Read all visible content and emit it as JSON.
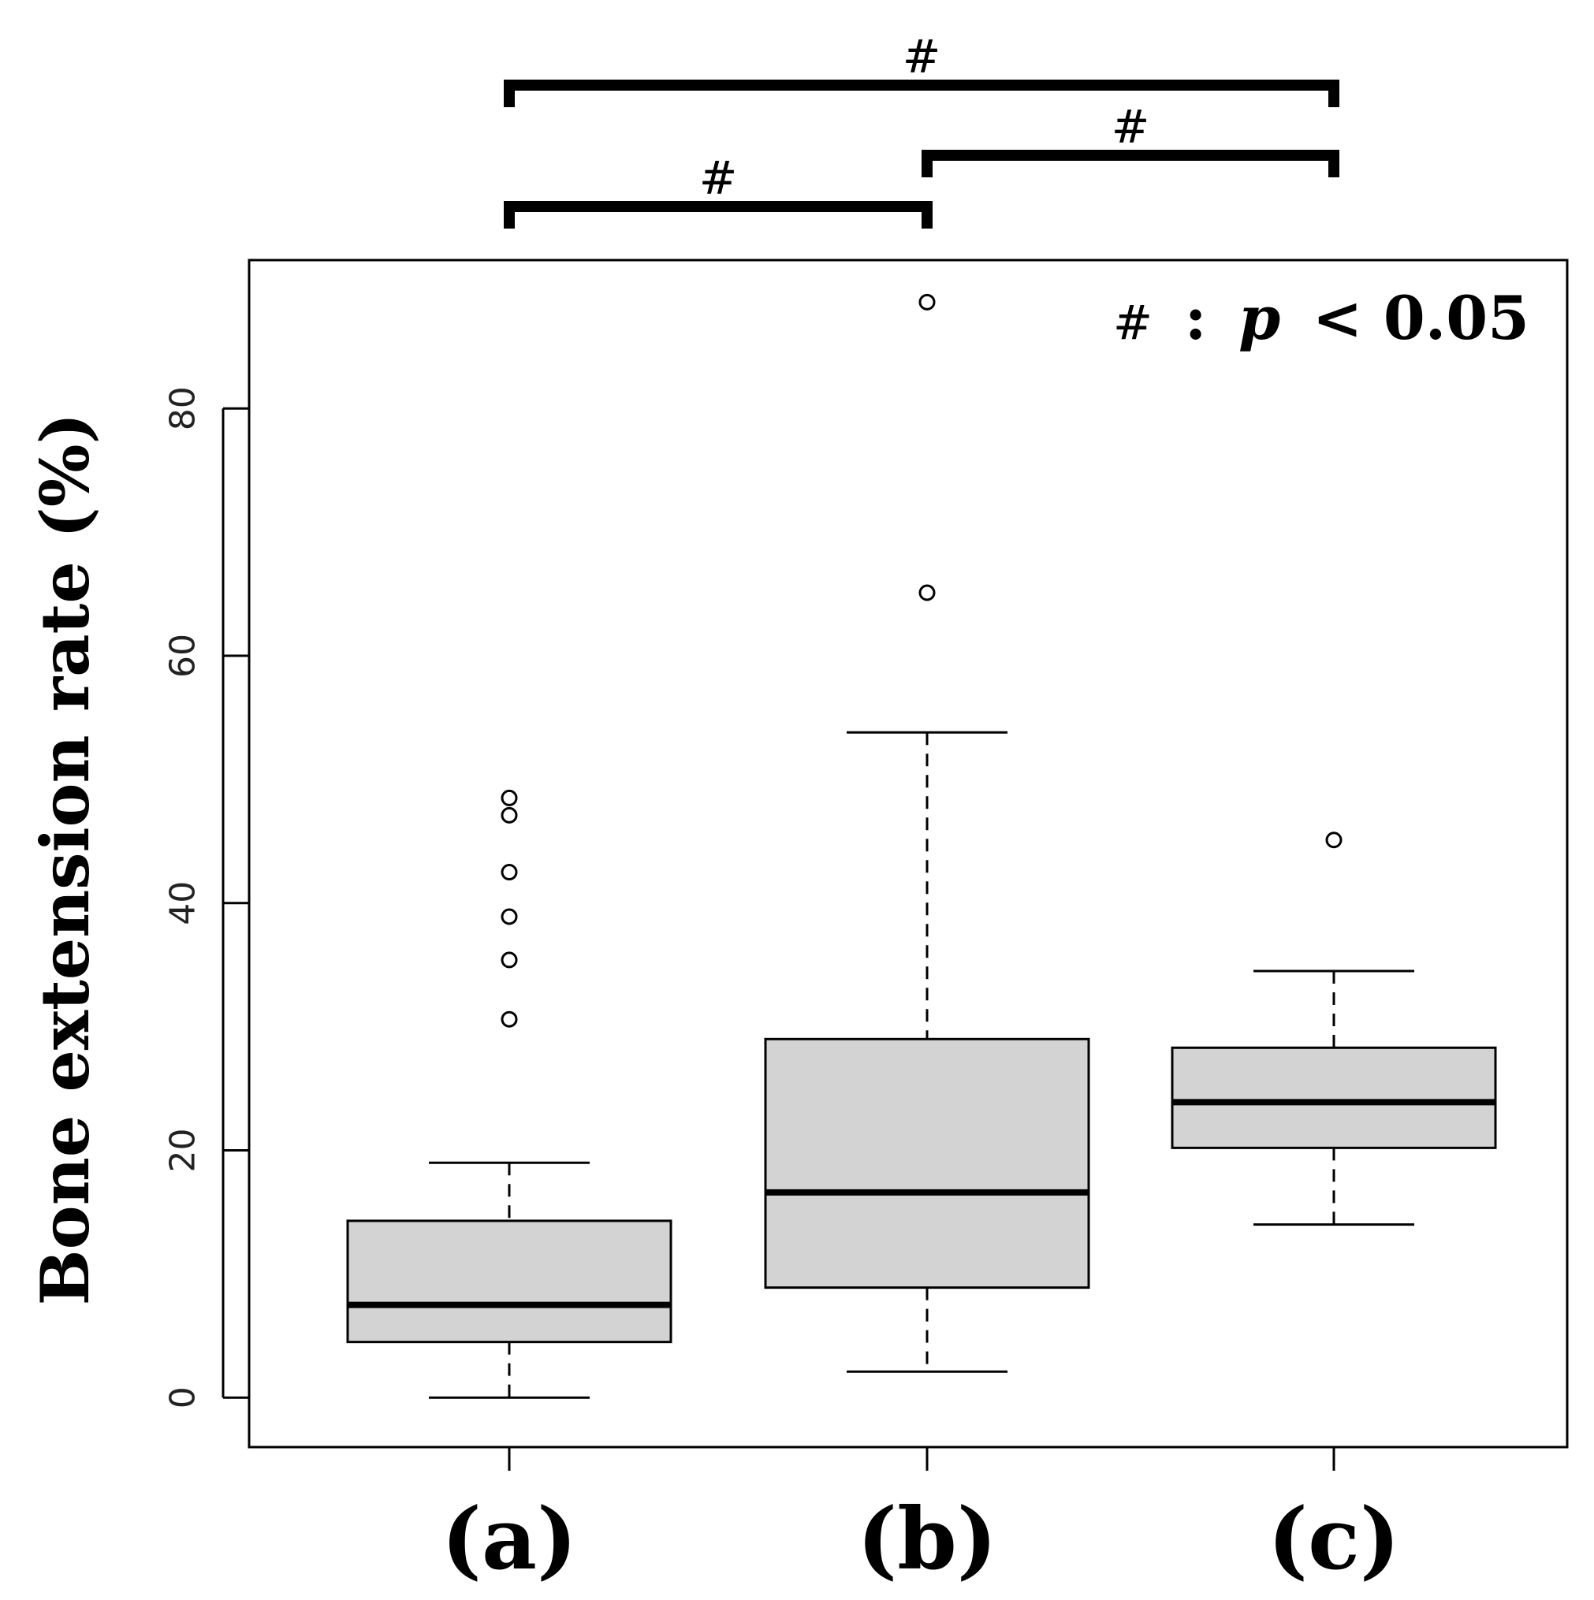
{
  "chart_data": {
    "type": "box",
    "ylabel": "Bone extension rate (%)",
    "xlabel": "",
    "title": "",
    "ylim": [
      -4,
      92
    ],
    "yticks": [
      0,
      20,
      40,
      60,
      80
    ],
    "categories": [
      "(a)",
      "(b)",
      "(c)"
    ],
    "boxes": [
      {
        "label": "(a)",
        "whisker_low": 0,
        "q1": 4.5,
        "median": 7.5,
        "q3": 14.3,
        "whisker_high": 19,
        "outliers": [
          30.6,
          35.4,
          38.9,
          42.5,
          47.1,
          48.5
        ]
      },
      {
        "label": "(b)",
        "whisker_low": 2.1,
        "q1": 8.9,
        "median": 16.6,
        "q3": 29,
        "whisker_high": 53.8,
        "outliers": [
          65.1,
          88.6
        ]
      },
      {
        "label": "(c)",
        "whisker_low": 14,
        "q1": 20.2,
        "median": 23.9,
        "q3": 28.3,
        "whisker_high": 34.5,
        "outliers": [
          45.1
        ]
      }
    ],
    "significance": [
      {
        "from": 0,
        "to": 2,
        "label": "#"
      },
      {
        "from": 1,
        "to": 2,
        "label": "#"
      },
      {
        "from": 0,
        "to": 1,
        "label": "#"
      }
    ],
    "legend": {
      "symbol": "#",
      "separator": ":",
      "p": "p",
      "relation": "< 0.05"
    },
    "colors": {
      "box_fill": "#d3d3d3",
      "stroke": "#000000"
    },
    "grid": false
  }
}
